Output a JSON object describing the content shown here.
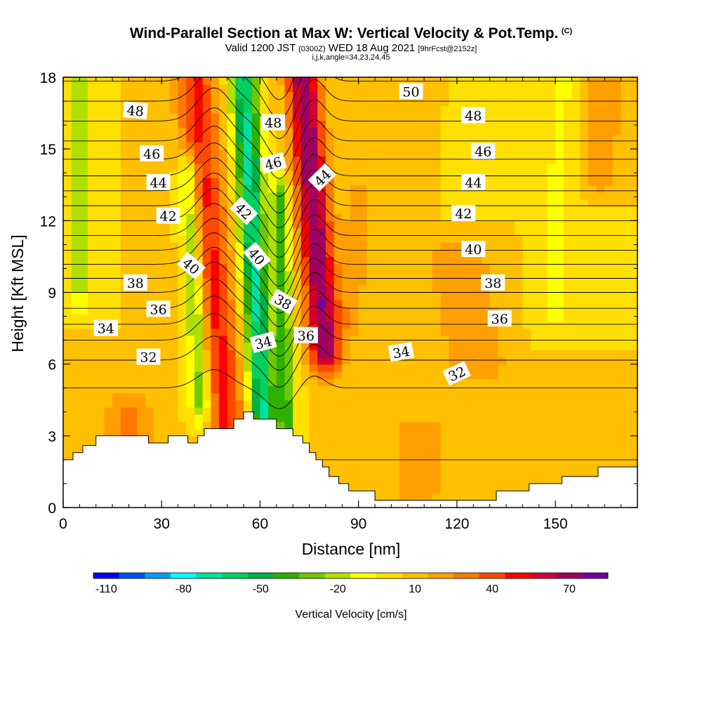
{
  "header": {
    "title": "Wind-Parallel Section at Max W: Vertical Velocity & Pot.Temp.",
    "title_tag": "(C)",
    "valid_prefix": "Valid 1200 JST",
    "valid_utc": "(0300Z)",
    "valid_date": "WED 18 Aug 2021",
    "forecast": "[9hrFcst@2152z]",
    "indices": "i,j,k,angle=34,23,24,45"
  },
  "chart_data": {
    "type": "heatmap",
    "xlabel": "Distance [nm]",
    "ylabel": "Height [Kft MSL]",
    "xlim": [
      0,
      175
    ],
    "ylim": [
      0,
      18
    ],
    "x_ticks": [
      "0",
      "30",
      "60",
      "90",
      "120",
      "150"
    ],
    "y_ticks": [
      "0",
      "3",
      "6",
      "9",
      "12",
      "15",
      "18"
    ],
    "background_velocity_cm_s": 5,
    "velocity_features": [
      {
        "x0": 50,
        "x1": 40,
        "y0": 3.4,
        "y1": 18,
        "width": 6,
        "value": 42
      },
      {
        "x0": 80,
        "x1": 73,
        "y0": 6.5,
        "y1": 18,
        "width": 5,
        "value": 70
      },
      {
        "x0": 61,
        "x1": 55,
        "y0": 3.7,
        "y1": 18,
        "width": 4,
        "value": -72
      },
      {
        "x0": 42,
        "x1": 38,
        "y0": 4.3,
        "y1": 14,
        "width": 3,
        "value": -40
      },
      {
        "x0": 68,
        "x1": 66,
        "y0": 3.5,
        "y1": 13,
        "width": 2.5,
        "value": -45
      },
      {
        "x0": 5,
        "x1": 5,
        "y0": 9,
        "y1": 18,
        "width": 3,
        "value": -25
      },
      {
        "x0": 126,
        "x1": 120,
        "y0": 6,
        "y1": 10.5,
        "width": 10,
        "value": 20
      },
      {
        "x0": 20,
        "x1": 20,
        "y0": 2.6,
        "y1": 4,
        "width": 8,
        "value": 22
      },
      {
        "x0": 108,
        "x1": 108,
        "y0": 0.5,
        "y1": 3.5,
        "width": 14,
        "value": 12
      },
      {
        "x0": 150,
        "x1": 152,
        "y0": 8,
        "y1": 18,
        "width": 6,
        "value": -12
      },
      {
        "x0": 163,
        "x1": 165,
        "y0": 14,
        "y1": 18,
        "width": 6,
        "value": 20
      },
      {
        "x0": 88,
        "x1": 90,
        "y0": 8,
        "y1": 13,
        "width": 4,
        "value": 16
      }
    ],
    "terrain": [
      [
        0,
        2
      ],
      [
        3,
        2
      ],
      [
        3,
        2.3
      ],
      [
        6,
        2.3
      ],
      [
        6,
        2.6
      ],
      [
        10,
        2.6
      ],
      [
        10,
        3
      ],
      [
        26,
        3
      ],
      [
        26,
        2.7
      ],
      [
        32,
        2.7
      ],
      [
        32,
        3
      ],
      [
        38,
        3
      ],
      [
        38,
        2.7
      ],
      [
        41,
        2.7
      ],
      [
        41,
        3
      ],
      [
        43,
        3
      ],
      [
        43,
        3.3
      ],
      [
        52,
        3.3
      ],
      [
        52,
        3.7
      ],
      [
        55,
        3.7
      ],
      [
        55,
        4
      ],
      [
        58,
        4
      ],
      [
        58,
        3.7
      ],
      [
        65,
        3.7
      ],
      [
        65,
        3.3
      ],
      [
        70,
        3.3
      ],
      [
        70,
        3
      ],
      [
        73,
        3
      ],
      [
        73,
        2.7
      ],
      [
        75,
        2.7
      ],
      [
        75,
        2.3
      ],
      [
        77,
        2.3
      ],
      [
        77,
        2
      ],
      [
        79,
        2
      ],
      [
        79,
        1.7
      ],
      [
        81,
        1.7
      ],
      [
        81,
        1.3
      ],
      [
        84,
        1.3
      ],
      [
        84,
        1
      ],
      [
        87,
        1
      ],
      [
        87,
        0.7
      ],
      [
        95,
        0.7
      ],
      [
        95,
        0.3
      ],
      [
        132,
        0.3
      ],
      [
        132,
        0.7
      ],
      [
        142,
        0.7
      ],
      [
        142,
        1
      ],
      [
        152,
        1
      ],
      [
        152,
        1.3
      ],
      [
        163,
        1.3
      ],
      [
        163,
        1.7
      ],
      [
        175,
        1.7
      ]
    ],
    "theta_contour_levels": [
      31,
      32,
      33,
      34,
      35,
      36,
      37,
      38,
      39,
      40,
      41,
      42,
      43,
      44,
      45,
      46,
      47,
      48,
      49,
      50,
      51
    ],
    "theta_profile": {
      "heights_kft": [
        0,
        1,
        2,
        3,
        4,
        5,
        6,
        7,
        8,
        9,
        10,
        11,
        12,
        13,
        14,
        15,
        16,
        17,
        18
      ],
      "theta_c": [
        30,
        30.5,
        31,
        31.3,
        31.6,
        32,
        32.8,
        34,
        35.5,
        37,
        38.7,
        40.4,
        42,
        43.6,
        45.2,
        46.6,
        47.8,
        49,
        50.2
      ]
    },
    "contour_labels": [
      {
        "text": "48",
        "x": 22,
        "y": 16.6,
        "angle": 5
      },
      {
        "text": "46",
        "x": 27,
        "y": 14.8,
        "angle": 0
      },
      {
        "text": "44",
        "x": 29,
        "y": 13.6,
        "angle": 0
      },
      {
        "text": "42",
        "x": 32,
        "y": 12.2,
        "angle": 0
      },
      {
        "text": "40",
        "x": 39,
        "y": 10.1,
        "angle": 40
      },
      {
        "text": "38",
        "x": 22,
        "y": 9.4,
        "angle": 0
      },
      {
        "text": "36",
        "x": 29,
        "y": 8.3,
        "angle": 0
      },
      {
        "text": "34",
        "x": 13,
        "y": 7.5,
        "angle": 0
      },
      {
        "text": "32",
        "x": 26,
        "y": 6.3,
        "angle": 0
      },
      {
        "text": "48",
        "x": 64,
        "y": 16.1,
        "angle": 0
      },
      {
        "text": "46",
        "x": 64,
        "y": 14.4,
        "angle": -15
      },
      {
        "text": "42",
        "x": 55,
        "y": 12.4,
        "angle": 45
      },
      {
        "text": "40",
        "x": 59,
        "y": 10.5,
        "angle": 50
      },
      {
        "text": "38",
        "x": 67,
        "y": 8.6,
        "angle": 30
      },
      {
        "text": "34",
        "x": 61,
        "y": 6.9,
        "angle": -15
      },
      {
        "text": "36",
        "x": 74,
        "y": 7.2,
        "angle": 0
      },
      {
        "text": "44",
        "x": 79,
        "y": 13.8,
        "angle": -45
      },
      {
        "text": "50",
        "x": 106,
        "y": 17.4,
        "angle": 0
      },
      {
        "text": "48",
        "x": 125,
        "y": 16.4,
        "angle": 0
      },
      {
        "text": "46",
        "x": 128,
        "y": 14.9,
        "angle": 0
      },
      {
        "text": "44",
        "x": 125,
        "y": 13.6,
        "angle": 0
      },
      {
        "text": "42",
        "x": 122,
        "y": 12.3,
        "angle": 0
      },
      {
        "text": "40",
        "x": 125,
        "y": 10.8,
        "angle": 0
      },
      {
        "text": "38",
        "x": 131,
        "y": 9.4,
        "angle": 0
      },
      {
        "text": "36",
        "x": 133,
        "y": 7.9,
        "angle": 0
      },
      {
        "text": "34",
        "x": 103,
        "y": 6.5,
        "angle": -10
      },
      {
        "text": "32",
        "x": 120,
        "y": 5.6,
        "angle": -25
      }
    ],
    "colorbar": {
      "label": "Vertical Velocity [cm/s]",
      "tick_labels": [
        "-110",
        "-80",
        "-50",
        "-20",
        "10",
        "40",
        "70"
      ],
      "bins_start": -115,
      "bin_width": 10,
      "colors": [
        "#0000ff",
        "#0050ff",
        "#00a0ff",
        "#00ffff",
        "#00e0a0",
        "#00d060",
        "#00b040",
        "#30b000",
        "#70c800",
        "#b0e000",
        "#ffff00",
        "#ffe000",
        "#ffc000",
        "#ffa000",
        "#ff7800",
        "#ff4800",
        "#ff0000",
        "#d00030",
        "#a00060",
        "#7000a0"
      ]
    }
  }
}
